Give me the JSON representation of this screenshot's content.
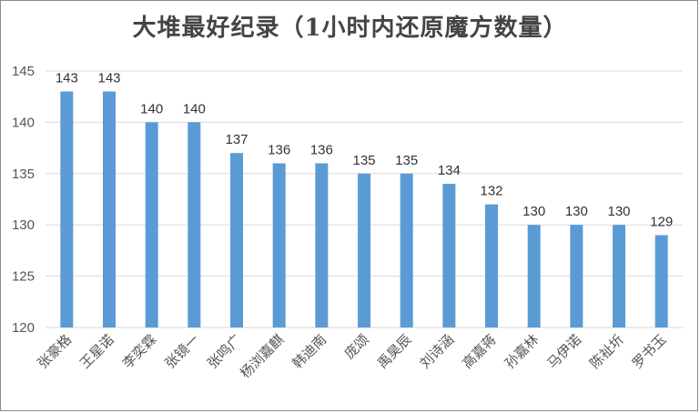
{
  "chart_data": {
    "type": "bar",
    "title": "大堆最好纪录（1小时内还原魔方数量）",
    "xlabel": "",
    "ylabel": "",
    "categories": [
      "张豪格",
      "王星诺",
      "李奕霖",
      "张镜一",
      "张鸣广",
      "杨浏嘉麒",
      "韩迪南",
      "庞颂",
      "禹昊辰",
      "刘诗涵",
      "高嘉蒋",
      "孙嘉林",
      "马伊诺",
      "陈祉圻",
      "罗书玉"
    ],
    "values": [
      143,
      143,
      140,
      140,
      137,
      136,
      136,
      135,
      135,
      134,
      132,
      130,
      130,
      130,
      129
    ],
    "ylim": [
      120,
      145
    ],
    "yticks": [
      120,
      125,
      130,
      135,
      140,
      145
    ],
    "grid": true,
    "legend": "none",
    "bar_color": "#5b9bd5",
    "grid_color": "#d9d9d9"
  }
}
